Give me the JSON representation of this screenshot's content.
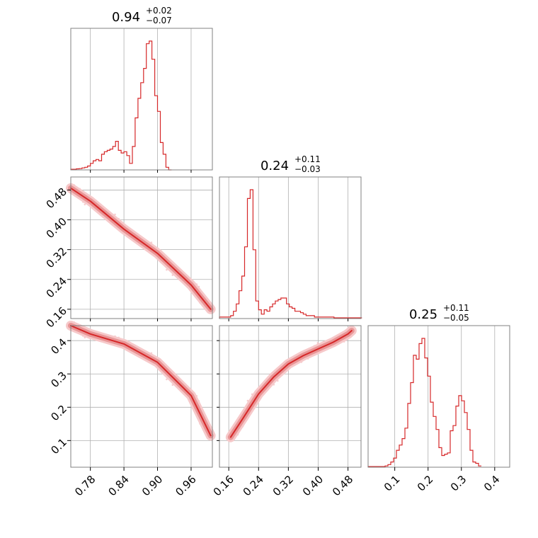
{
  "colors": {
    "series": "#d62728",
    "fill_light": "#f6c9ca",
    "fill_mid": "#e99596",
    "scatter": "#f1aeb0"
  },
  "chart_data": {
    "type": "corner",
    "titles": [
      {
        "value": "0.94",
        "plus": "+0.02",
        "minus": "−0.07"
      },
      {
        "value": "0.24",
        "plus": "+0.11",
        "minus": "−0.03"
      },
      {
        "value": "0.25",
        "plus": "+0.11",
        "minus": "−0.05"
      }
    ],
    "params": [
      {
        "range": [
          0.745,
          0.998
        ],
        "ticks": [
          0.78,
          0.84,
          0.9,
          0.96
        ],
        "tick_labels": [
          "0.78",
          "0.84",
          "0.90",
          "0.96"
        ]
      },
      {
        "range": [
          0.135,
          0.515
        ],
        "ticks": [
          0.16,
          0.24,
          0.32,
          0.4,
          0.48
        ],
        "tick_labels": [
          "0.16",
          "0.24",
          "0.32",
          "0.40",
          "0.48"
        ]
      },
      {
        "range": [
          0.02,
          0.445
        ],
        "ticks": [
          0.1,
          0.2,
          0.3,
          0.4
        ],
        "tick_labels": [
          "0.1",
          "0.2",
          "0.3",
          "0.4"
        ]
      }
    ],
    "histograms": [
      {
        "param": 0,
        "start": 0.745,
        "bin_width": 0.005,
        "counts": [
          0.5,
          0.5,
          0.8,
          1,
          1.5,
          2,
          3,
          5,
          7,
          8,
          7,
          12,
          14,
          15,
          16,
          18,
          22,
          15,
          13,
          14,
          11,
          5,
          18,
          40,
          55,
          67,
          78,
          97,
          99,
          85,
          57,
          45,
          21,
          12,
          2,
          0
        ]
      },
      {
        "param": 1,
        "start": 0.135,
        "bin_width": 0.0075,
        "counts": [
          1,
          1,
          1,
          1,
          2,
          5,
          10,
          19,
          29,
          49,
          82,
          88,
          47,
          12,
          6,
          3,
          6,
          5,
          8,
          10,
          12,
          13,
          14,
          14,
          10,
          8,
          7,
          5,
          5,
          4,
          3,
          2,
          2,
          2,
          1,
          1,
          1,
          1,
          1,
          1,
          1,
          0.5,
          0.5,
          0.5,
          0.5,
          0.5,
          0.5,
          0.5,
          0.5,
          0.5,
          0.5
        ]
      },
      {
        "param": 2,
        "start": 0.02,
        "bin_width": 0.0085,
        "counts": [
          0.5,
          0.5,
          0.5,
          0.5,
          0.5,
          0.5,
          1,
          2,
          4,
          7,
          13,
          17,
          22,
          30,
          49,
          65,
          86,
          83,
          95,
          99,
          84,
          70,
          50,
          39,
          29,
          15,
          9,
          10,
          11,
          28,
          32,
          47,
          55,
          51,
          42,
          29,
          13,
          4,
          3,
          1
        ]
      }
    ],
    "pair_curves": [
      {
        "x_param": 0,
        "y_param": 1,
        "x": [
          0.745,
          0.78,
          0.84,
          0.9,
          0.96,
          0.995
        ],
        "y": [
          0.485,
          0.45,
          0.375,
          0.31,
          0.225,
          0.16
        ]
      },
      {
        "x_param": 0,
        "y_param": 2,
        "x": [
          0.745,
          0.78,
          0.84,
          0.9,
          0.96,
          0.995
        ],
        "y": [
          0.445,
          0.42,
          0.39,
          0.335,
          0.235,
          0.115
        ]
      },
      {
        "x_param": 1,
        "y_param": 2,
        "x": [
          0.165,
          0.2,
          0.24,
          0.28,
          0.32,
          0.36,
          0.4,
          0.44,
          0.48,
          0.49
        ],
        "y": [
          0.11,
          0.17,
          0.24,
          0.29,
          0.33,
          0.355,
          0.375,
          0.395,
          0.42,
          0.43
        ]
      }
    ]
  }
}
